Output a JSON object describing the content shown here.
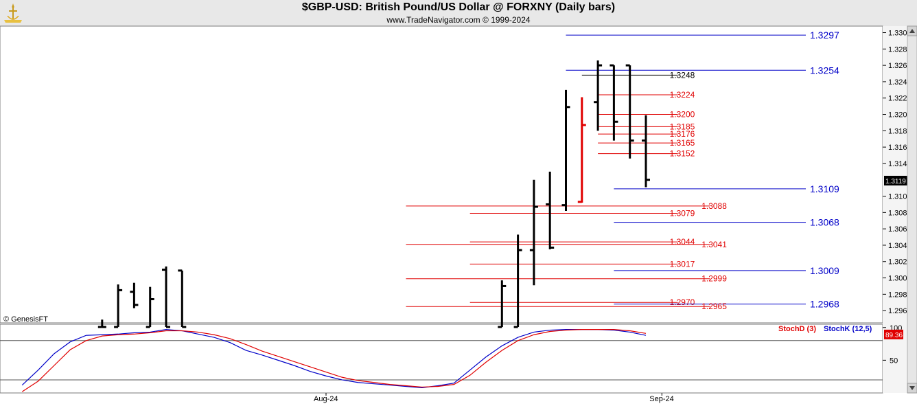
{
  "header": {
    "title": "$GBP-USD:  British Pound/US Dollar @ FORXNY  (Daily bars)",
    "subtitle": "www.TradeNavigator.com © 1999-2024",
    "logo_icon": "trade-navigator-logo-icon"
  },
  "watermark": "© GenesisFT",
  "chart_data": [
    {
      "type": "bar",
      "subtype": "ohlc",
      "y_ticks": [
        1.296,
        1.298,
        1.3,
        1.302,
        1.304,
        1.306,
        1.308,
        1.31,
        1.314,
        1.316,
        1.318,
        1.32,
        1.322,
        1.324,
        1.326,
        1.328,
        1.33
      ],
      "y_tick_labels": [
        "1.2960",
        "1.2980",
        "1.3000",
        "1.3020",
        "1.3040",
        "1.3060",
        "1.3080",
        "1.3100",
        "1.3140",
        "1.3160",
        "1.3180",
        "1.3200",
        "1.3220",
        "1.3240",
        "1.3260",
        "1.3280",
        "1.3300"
      ],
      "ylim": [
        1.2945,
        1.3308
      ],
      "last_price": "1.3119",
      "colors": {
        "bar": "#000000",
        "highlight_bar": "#e00000",
        "level_red": "#e00000",
        "level_blue": "#0000c8",
        "level_black": "#000000"
      },
      "bars": [
        {
          "x": 6,
          "high": 1.2949,
          "low": 1.294,
          "close": 1.294,
          "open": 1.294,
          "color": "black"
        },
        {
          "x": 7,
          "high": 1.2992,
          "low": 1.294,
          "close": 1.2985,
          "open": 1.294,
          "color": "black"
        },
        {
          "x": 8,
          "high": 1.2994,
          "low": 1.2963,
          "close": 1.2967,
          "open": 1.2983,
          "color": "black"
        },
        {
          "x": 9,
          "high": 1.2989,
          "low": 1.294,
          "close": 1.2974,
          "open": 1.294,
          "color": "black"
        },
        {
          "x": 10,
          "high": 1.3014,
          "low": 1.294,
          "close": 1.294,
          "open": 1.301,
          "color": "black"
        },
        {
          "x": 11,
          "high": 1.3009,
          "low": 1.294,
          "close": 1.294,
          "open": 1.3009,
          "color": "black"
        },
        {
          "x": 31,
          "high": 1.2997,
          "low": 1.294,
          "close": 1.299,
          "open": 1.294,
          "color": "black"
        },
        {
          "x": 32,
          "high": 1.3053,
          "low": 1.294,
          "close": 1.3034,
          "open": 1.294,
          "color": "black"
        },
        {
          "x": 33,
          "high": 1.312,
          "low": 1.2991,
          "close": 1.3087,
          "open": 1.3034,
          "color": "black"
        },
        {
          "x": 34,
          "high": 1.313,
          "low": 1.3035,
          "close": 1.3037,
          "open": 1.309,
          "color": "black"
        },
        {
          "x": 35,
          "high": 1.323,
          "low": 1.3082,
          "close": 1.3209,
          "open": 1.3089,
          "color": "black"
        },
        {
          "x": 36,
          "high": 1.3221,
          "low": 1.3092,
          "close": 1.3187,
          "open": 1.3093,
          "color": "red"
        },
        {
          "x": 37,
          "high": 1.3266,
          "low": 1.318,
          "close": 1.326,
          "open": 1.3215,
          "color": "black"
        },
        {
          "x": 38,
          "high": 1.326,
          "low": 1.3168,
          "close": 1.3191,
          "open": 1.326,
          "color": "black"
        },
        {
          "x": 39,
          "high": 1.326,
          "low": 1.3146,
          "close": 1.3168,
          "open": 1.326,
          "color": "black"
        },
        {
          "x": 40,
          "high": 1.3199,
          "low": 1.3111,
          "close": 1.312,
          "open": 1.3168,
          "color": "black"
        }
      ],
      "levels": [
        {
          "value": 1.3297,
          "label": "1.3297",
          "color": "blue",
          "x_start": 35,
          "x_end": 50,
          "label_pos": "right"
        },
        {
          "value": 1.3254,
          "label": "1.3254",
          "color": "blue",
          "x_start": 35,
          "x_end": 50,
          "label_pos": "right"
        },
        {
          "value": 1.3248,
          "label": "1.3248",
          "color": "black",
          "x_start": 36,
          "x_end": 42,
          "label_pos": "mid"
        },
        {
          "value": 1.3224,
          "label": "1.3224",
          "color": "red",
          "x_start": 37,
          "x_end": 42,
          "label_pos": "mid"
        },
        {
          "value": 1.32,
          "label": "1.3200",
          "color": "red",
          "x_start": 37,
          "x_end": 42,
          "label_pos": "mid"
        },
        {
          "value": 1.3185,
          "label": "1.3185",
          "color": "red",
          "x_start": 37,
          "x_end": 42,
          "label_pos": "mid"
        },
        {
          "value": 1.3176,
          "label": "1.3176",
          "color": "red",
          "x_start": 37,
          "x_end": 42,
          "label_pos": "mid"
        },
        {
          "value": 1.3165,
          "label": "1.3165",
          "color": "red",
          "x_start": 37,
          "x_end": 42,
          "label_pos": "mid"
        },
        {
          "value": 1.3152,
          "label": "1.3152",
          "color": "red",
          "x_start": 37,
          "x_end": 42,
          "label_pos": "mid"
        },
        {
          "value": 1.3109,
          "label": "1.3109",
          "color": "blue",
          "x_start": 38,
          "x_end": 50,
          "label_pos": "right"
        },
        {
          "value": 1.3088,
          "label": "1.3088",
          "color": "red",
          "x_start": 25,
          "x_end": 44,
          "label_pos": "mid"
        },
        {
          "value": 1.3079,
          "label": "1.3079",
          "color": "red",
          "x_start": 29,
          "x_end": 42,
          "label_pos": "mid"
        },
        {
          "value": 1.3068,
          "label": "1.3068",
          "color": "blue",
          "x_start": 38,
          "x_end": 50,
          "label_pos": "right"
        },
        {
          "value": 1.3044,
          "label": "1.3044",
          "color": "red",
          "x_start": 29,
          "x_end": 42,
          "label_pos": "mid"
        },
        {
          "value": 1.3041,
          "label": "1.3041",
          "color": "red",
          "x_start": 25,
          "x_end": 44,
          "label_pos": "mid"
        },
        {
          "value": 1.3017,
          "label": "1.3017",
          "color": "red",
          "x_start": 29,
          "x_end": 42,
          "label_pos": "mid"
        },
        {
          "value": 1.3009,
          "label": "1.3009",
          "color": "blue",
          "x_start": 38,
          "x_end": 50,
          "label_pos": "right"
        },
        {
          "value": 1.2999,
          "label": "1.2999",
          "color": "red",
          "x_start": 25,
          "x_end": 44,
          "label_pos": "mid"
        },
        {
          "value": 1.297,
          "label": "1.2970",
          "color": "red",
          "x_start": 29,
          "x_end": 42,
          "label_pos": "mid"
        },
        {
          "value": 1.2968,
          "label": "1.2968",
          "color": "blue",
          "x_start": 38,
          "x_end": 50,
          "label_pos": "right"
        },
        {
          "value": 1.2965,
          "label": "1.2965",
          "color": "red",
          "x_start": 25,
          "x_end": 44,
          "label_pos": "mid"
        }
      ]
    },
    {
      "type": "line",
      "indicator": "stochastic",
      "legend": [
        "StochD (3)",
        "StochK (12,5)"
      ],
      "y_ticks": [
        50,
        100
      ],
      "y_tick_labels": [
        "50",
        "100"
      ],
      "ylim": [
        0,
        105
      ],
      "reference_lines": [
        80,
        20
      ],
      "last_value": "89.36",
      "x_tick_labels": [
        {
          "x": 20,
          "label": "Aug-24"
        },
        {
          "x": 41,
          "label": "Sep-24"
        }
      ],
      "series": [
        {
          "name": "StochK (12,5)",
          "color": "#0000c8",
          "x": [
            1,
            2,
            3,
            4,
            5,
            6,
            7,
            8,
            9,
            10,
            11,
            12,
            13,
            14,
            15,
            16,
            17,
            18,
            19,
            20,
            21,
            22,
            23,
            24,
            25,
            26,
            27,
            28,
            29,
            30,
            31,
            32,
            33,
            34,
            35,
            36,
            37,
            38,
            39,
            40
          ],
          "values": [
            12,
            35,
            60,
            78,
            88,
            89,
            90,
            92,
            93,
            97,
            95,
            90,
            85,
            77,
            65,
            58,
            50,
            42,
            33,
            26,
            20,
            16,
            14,
            12,
            10,
            8,
            11,
            15,
            35,
            55,
            72,
            85,
            93,
            96,
            97,
            97,
            97,
            96,
            93,
            88
          ]
        },
        {
          "name": "StochD (3)",
          "color": "#e00000",
          "x": [
            1,
            2,
            3,
            4,
            5,
            6,
            7,
            8,
            9,
            10,
            11,
            12,
            13,
            14,
            15,
            16,
            17,
            18,
            19,
            20,
            21,
            22,
            23,
            24,
            25,
            26,
            27,
            28,
            29,
            30,
            31,
            32,
            33,
            34,
            35,
            36,
            37,
            38,
            39,
            40
          ],
          "values": [
            2,
            18,
            42,
            66,
            80,
            87,
            89,
            90,
            92,
            95,
            95,
            93,
            89,
            83,
            74,
            64,
            56,
            48,
            40,
            32,
            24,
            19,
            16,
            13,
            11,
            9,
            10,
            13,
            27,
            47,
            65,
            80,
            89,
            94,
            96,
            97,
            97,
            97,
            95,
            91
          ]
        }
      ]
    }
  ]
}
